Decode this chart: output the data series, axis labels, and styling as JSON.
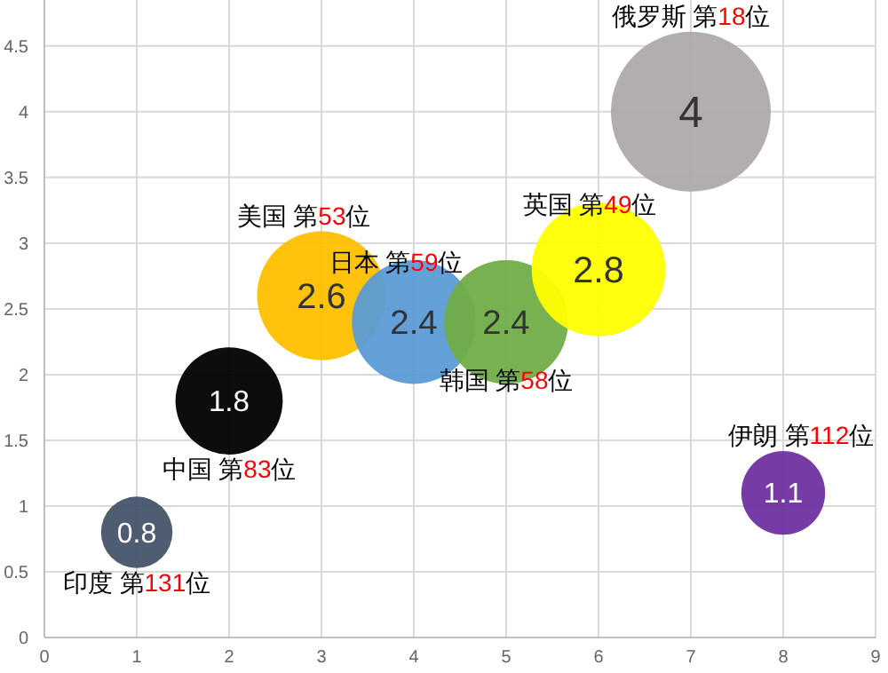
{
  "chart_data": {
    "type": "bubble",
    "xlim": [
      0,
      9
    ],
    "ylim": [
      0,
      4.85
    ],
    "xticks": [
      0,
      1,
      2,
      3,
      4,
      5,
      6,
      7,
      8,
      9
    ],
    "yticks": [
      0,
      0.5,
      1,
      1.5,
      2,
      2.5,
      3,
      3.5,
      4,
      4.5
    ],
    "grid": true,
    "data_labels": true,
    "series": [
      {
        "name": "印度 第131位",
        "color": "#44546a",
        "x": [
          1
        ],
        "values": [
          0.8
        ],
        "sizes": [
          0.2
        ]
      },
      {
        "name": "中国 第83位",
        "color": "#000000",
        "x": [
          2
        ],
        "values": [
          1.8
        ],
        "sizes": [
          0.45
        ]
      },
      {
        "name": "美国 第53位",
        "color": "#ffc000",
        "x": [
          3
        ],
        "values": [
          2.6
        ],
        "sizes": [
          0.65
        ]
      },
      {
        "name": "日本 第59位",
        "color": "#5b9bd5",
        "x": [
          4
        ],
        "values": [
          2.4
        ],
        "sizes": [
          0.6
        ]
      },
      {
        "name": "韩国 第58位",
        "color": "#70ad47",
        "x": [
          5
        ],
        "values": [
          2.4
        ],
        "sizes": [
          0.6
        ]
      },
      {
        "name": "英国 第49位",
        "color": "#ffff00",
        "x": [
          6
        ],
        "values": [
          2.8
        ],
        "sizes": [
          0.7
        ]
      },
      {
        "name": "俄罗斯 第18位",
        "color": "#aeaaaa",
        "x": [
          7
        ],
        "values": [
          4
        ],
        "sizes": [
          1
        ]
      },
      {
        "name": "伊朗 第112位",
        "color": "#7030a0",
        "x": [
          8
        ],
        "values": [
          1.1
        ],
        "sizes": [
          0.275
        ]
      }
    ]
  }
}
